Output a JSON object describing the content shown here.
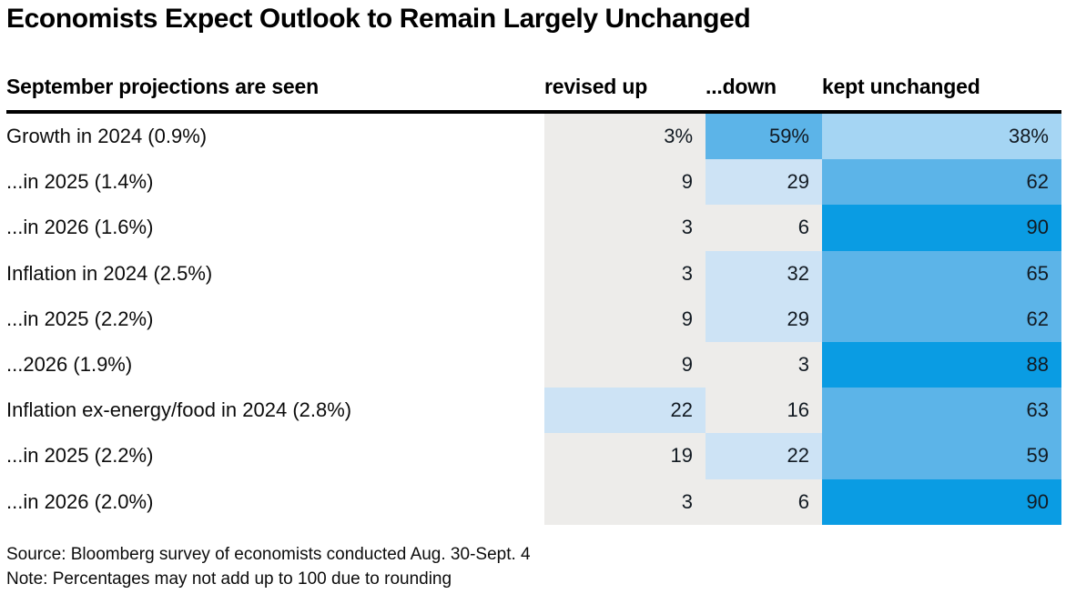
{
  "title": "Economists Expect Outlook to Remain Largely Unchanged",
  "header": {
    "label": "September projections are seen",
    "columns": [
      "revised up",
      "...down",
      "kept unchanged"
    ]
  },
  "colors": {
    "neutral_cell": "#EDECEA",
    "blue_xlight": "#CDE3F5",
    "blue_light": "#A5D5F3",
    "blue_medium": "#5CB4E8",
    "blue_strong": "#0A9CE3",
    "header_rule": "#000000"
  },
  "chart_data": {
    "type": "heatmap",
    "title": "Economists Expect Outlook to Remain Largely Unchanged",
    "row_header": "September projections are seen",
    "columns": [
      "revised up",
      "...down",
      "kept unchanged"
    ],
    "unit": "%",
    "rows": [
      {
        "label": "Growth in 2024 (0.9%)",
        "values": [
          3,
          59,
          38
        ],
        "display": [
          "3%",
          "59%",
          "38%"
        ],
        "colors": [
          "#EDECEA",
          "#5CB4E8",
          "#A5D5F3"
        ]
      },
      {
        "label": "...in 2025 (1.4%)",
        "values": [
          9,
          29,
          62
        ],
        "display": [
          "9",
          "29",
          "62"
        ],
        "colors": [
          "#EDECEA",
          "#CDE3F5",
          "#5CB4E8"
        ]
      },
      {
        "label": "...in 2026 (1.6%)",
        "values": [
          3,
          6,
          90
        ],
        "display": [
          "3",
          "6",
          "90"
        ],
        "colors": [
          "#EDECEA",
          "#EDECEA",
          "#0A9CE3"
        ]
      },
      {
        "label": "Inflation in 2024 (2.5%)",
        "values": [
          3,
          32,
          65
        ],
        "display": [
          "3",
          "32",
          "65"
        ],
        "colors": [
          "#EDECEA",
          "#CDE3F5",
          "#5CB4E8"
        ]
      },
      {
        "label": "...in 2025 (2.2%)",
        "values": [
          9,
          29,
          62
        ],
        "display": [
          "9",
          "29",
          "62"
        ],
        "colors": [
          "#EDECEA",
          "#CDE3F5",
          "#5CB4E8"
        ]
      },
      {
        "label": "...2026 (1.9%)",
        "values": [
          9,
          3,
          88
        ],
        "display": [
          "9",
          "3",
          "88"
        ],
        "colors": [
          "#EDECEA",
          "#EDECEA",
          "#0A9CE3"
        ]
      },
      {
        "label": "Inflation ex-energy/food in 2024 (2.8%)",
        "values": [
          22,
          16,
          63
        ],
        "display": [
          "22",
          "16",
          "63"
        ],
        "colors": [
          "#CDE3F5",
          "#EDECEA",
          "#5CB4E8"
        ]
      },
      {
        "label": "...in 2025 (2.2%)",
        "values": [
          19,
          22,
          59
        ],
        "display": [
          "19",
          "22",
          "59"
        ],
        "colors": [
          "#EDECEA",
          "#CDE3F5",
          "#5CB4E8"
        ]
      },
      {
        "label": "...in 2026 (2.0%)",
        "values": [
          3,
          6,
          90
        ],
        "display": [
          "3",
          "6",
          "90"
        ],
        "colors": [
          "#EDECEA",
          "#EDECEA",
          "#0A9CE3"
        ]
      }
    ],
    "color_scale_bins": [
      {
        "range": [
          0,
          19
        ],
        "color": "#EDECEA"
      },
      {
        "range": [
          20,
          34
        ],
        "color": "#CDE3F5"
      },
      {
        "range": [
          35,
          49
        ],
        "color": "#A5D5F3"
      },
      {
        "range": [
          50,
          79
        ],
        "color": "#5CB4E8"
      },
      {
        "range": [
          80,
          100
        ],
        "color": "#0A9CE3"
      }
    ],
    "legend_position": "none",
    "grid": false
  },
  "footer": {
    "source": "Source: Bloomberg survey of economists conducted Aug. 30-Sept. 4",
    "note": "Note: Percentages may not add up to 100 due to rounding"
  }
}
